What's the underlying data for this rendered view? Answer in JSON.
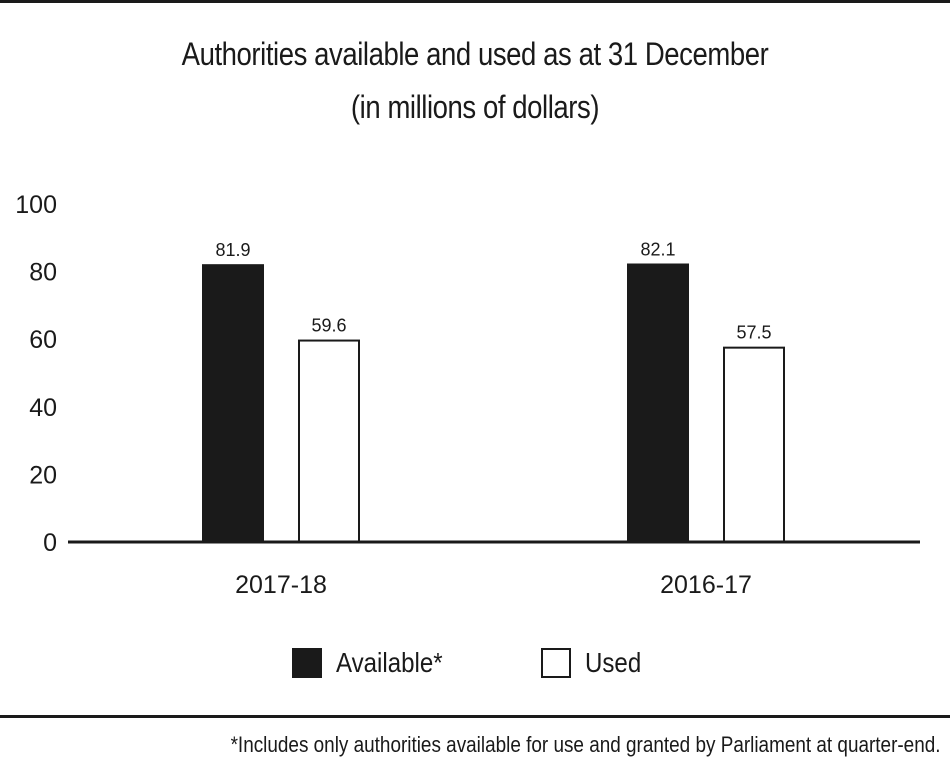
{
  "chart_data": {
    "type": "bar",
    "title": "Authorities available and used as at 31 December",
    "subtitle": "(in millions of dollars)",
    "categories": [
      "2017-18",
      "2016-17"
    ],
    "series": [
      {
        "name": "Available*",
        "values": [
          81.9,
          82.1
        ],
        "color": "#1a1a1a"
      },
      {
        "name": "Used",
        "values": [
          59.6,
          57.5
        ],
        "color": "#ffffff"
      }
    ],
    "data_labels": [
      [
        "81.9",
        "82.1"
      ],
      [
        "59.6",
        "57.5"
      ]
    ],
    "ylim": [
      0,
      100
    ],
    "yticks": [
      0,
      20,
      40,
      60,
      80,
      100
    ],
    "grid": false,
    "legend_position": "bottom",
    "footnote": "*Includes only authorities available for use and granted by Parliament at quarter-end."
  }
}
